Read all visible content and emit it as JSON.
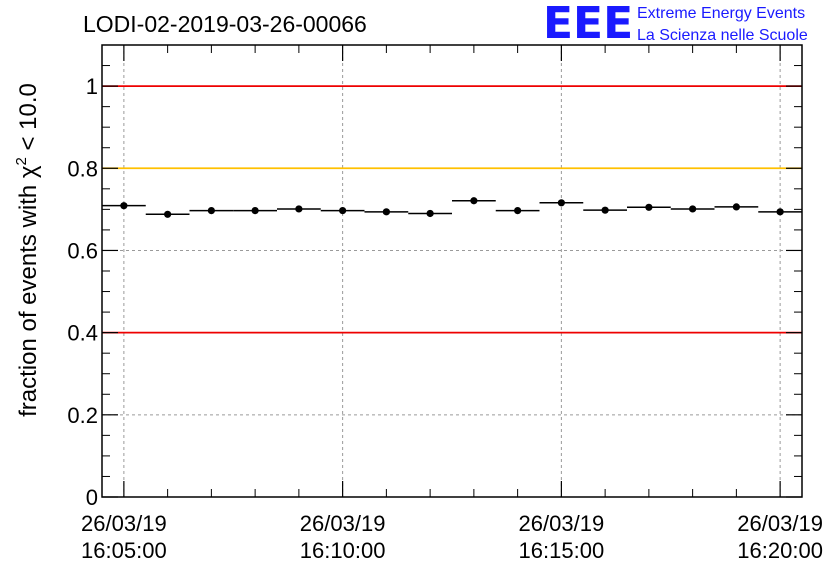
{
  "chart_data": {
    "type": "scatter",
    "title": "LODI-02-2019-03-26-00066",
    "ylabel": "fraction of events with χ² < 10.0",
    "ylabel_parts": {
      "prefix": "fraction of events with ",
      "symbol": "χ",
      "superscript": "2",
      "suffix": " < 10.0"
    },
    "xlabel": "",
    "ylim": [
      0,
      1.1
    ],
    "xlim_minutes": [
      -0.5,
      15.5
    ],
    "x_ticks": [
      {
        "date": "26/03/19",
        "time": "16:05:00",
        "minute": 0
      },
      {
        "date": "26/03/19",
        "time": "16:10:00",
        "minute": 5
      },
      {
        "date": "26/03/19",
        "time": "16:15:00",
        "minute": 10
      },
      {
        "date": "26/03/19",
        "time": "16:20:00",
        "minute": 15
      }
    ],
    "y_ticks": [
      "0",
      "0.2",
      "0.4",
      "0.6",
      "0.8",
      "1"
    ],
    "y_tick_values": [
      0,
      0.2,
      0.4,
      0.6,
      0.8,
      1.0
    ],
    "grid": true,
    "series": [
      {
        "name": "fraction",
        "x_minutes": [
          0,
          1,
          2,
          3,
          4,
          5,
          6,
          7,
          8,
          9,
          10,
          11,
          12,
          13,
          14,
          15
        ],
        "values": [
          0.709,
          0.688,
          0.697,
          0.697,
          0.701,
          0.697,
          0.694,
          0.69,
          0.721,
          0.697,
          0.716,
          0.698,
          0.705,
          0.701,
          0.706,
          0.694
        ],
        "bin_width_minutes": 1,
        "color": "#000000"
      }
    ],
    "reference_lines": [
      {
        "y": 1.0,
        "color": "#ee0000"
      },
      {
        "y": 0.8,
        "color": "#ffc000"
      },
      {
        "y": 0.4,
        "color": "#ee0000"
      }
    ]
  },
  "logo": {
    "mark": "EEE",
    "line1": "Extreme Energy Events",
    "line2": "La Scienza nelle Scuole",
    "color": "#1a1aff"
  }
}
